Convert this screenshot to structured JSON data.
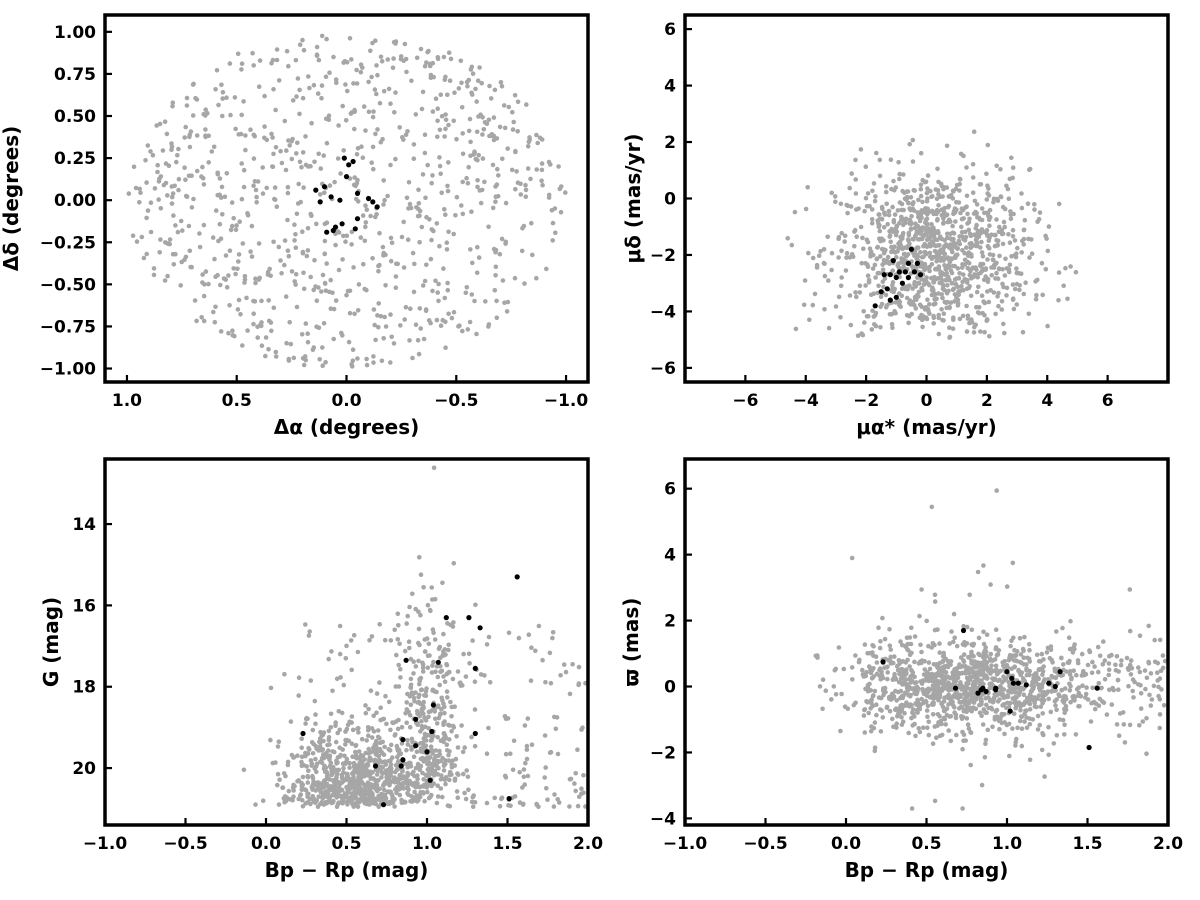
{
  "chart_data": [
    {
      "type": "scatter",
      "id": "spatial",
      "xlabel": "Δα (degrees)",
      "ylabel": "Δδ (degrees)",
      "xlim": [
        1.1,
        -1.1
      ],
      "ylim": [
        -1.08,
        1.1
      ],
      "x_reversed": true,
      "xticks": [
        1.0,
        0.5,
        0.0,
        -0.5,
        -1.0
      ],
      "xtick_labels": [
        "1.0",
        "0.5",
        "0.0",
        "−0.5",
        "−1.0"
      ],
      "yticks": [
        -1.0,
        -0.75,
        -0.5,
        -0.25,
        0.0,
        0.25,
        0.5,
        0.75,
        1.0
      ],
      "ytick_labels": [
        "−1.00",
        "−0.75",
        "−0.50",
        "−0.25",
        "0.00",
        "0.25",
        "0.50",
        "0.75",
        "1.00"
      ],
      "grid": false,
      "legend": "none",
      "field_color": "#a6a6a6",
      "member_color": "#000000",
      "field_distribution": {
        "shape": "disk",
        "center": [
          0.0,
          0.0
        ],
        "radius": 1.0,
        "n": 900
      },
      "members": {
        "x": [
          0.14,
          0.12,
          0.1,
          0.07,
          0.03,
          0.01,
          -0.01,
          -0.03,
          -0.05,
          -0.04,
          0.02,
          0.06,
          0.09,
          -0.1,
          -0.12,
          -0.14,
          -0.05,
          0.0,
          0.05
        ],
        "y": [
          0.06,
          -0.01,
          0.08,
          0.02,
          0.0,
          0.25,
          0.21,
          0.23,
          0.04,
          -0.17,
          -0.14,
          -0.18,
          -0.19,
          0.01,
          -0.01,
          -0.04,
          -0.11,
          0.14,
          -0.16
        ]
      }
    },
    {
      "type": "scatter",
      "id": "proper-motion",
      "xlabel": "μα* (mas/yr)",
      "ylabel": "μδ (mas/yr)",
      "xlim": [
        -8,
        8
      ],
      "ylim": [
        -6.5,
        6.5
      ],
      "xticks": [
        -6,
        -4,
        -2,
        0,
        2,
        4,
        6
      ],
      "xtick_labels": [
        "−6",
        "−4",
        "−2",
        "0",
        "2",
        "4",
        "6"
      ],
      "yticks": [
        -6,
        -4,
        -2,
        0,
        2,
        4,
        6
      ],
      "ytick_labels": [
        "−6",
        "−4",
        "−2",
        "0",
        "2",
        "4",
        "6"
      ],
      "grid": false,
      "legend": "none",
      "field_color": "#a6a6a6",
      "member_color": "#000000",
      "field_distribution": {
        "shape": "gaussian-clump",
        "center": [
          0.2,
          -2.0
        ],
        "sigma": [
          1.6,
          1.5
        ],
        "n": 1100
      },
      "members": {
        "x": [
          -0.5,
          -0.6,
          -0.9,
          -1.1,
          -1.2,
          -1.0,
          -0.3,
          -0.2,
          -0.6,
          -0.8,
          -1.3,
          -1.5,
          -1.7,
          -1.2,
          -1.0,
          -0.7,
          -0.4,
          -1.4
        ],
        "y": [
          -1.8,
          -2.3,
          -2.6,
          -2.2,
          -2.7,
          -3.5,
          -2.3,
          -2.7,
          -2.8,
          -3.0,
          -3.2,
          -3.3,
          -3.8,
          -3.6,
          -2.8,
          -2.6,
          -2.6,
          -2.7
        ]
      }
    },
    {
      "type": "scatter",
      "id": "color-magnitude",
      "xlabel": "Bp − Rp (mag)",
      "ylabel": "G (mag)",
      "xlim": [
        -1.0,
        2.0
      ],
      "ylim": [
        21.4,
        12.4
      ],
      "y_reversed": true,
      "xticks": [
        -1.0,
        -0.5,
        0.0,
        0.5,
        1.0,
        1.5,
        2.0
      ],
      "xtick_labels": [
        "−1.0",
        "−0.5",
        "0.0",
        "0.5",
        "1.0",
        "1.5",
        "2.0"
      ],
      "yticks": [
        14,
        16,
        18,
        20
      ],
      "ytick_labels": [
        "14",
        "16",
        "18",
        "20"
      ],
      "grid": false,
      "legend": "none",
      "field_color": "#a6a6a6",
      "member_color": "#000000",
      "field_distribution": {
        "shape": "cmd-fan",
        "n": 1300
      },
      "members": {
        "x": [
          0.23,
          0.68,
          0.73,
          0.84,
          0.85,
          0.85,
          0.87,
          0.93,
          0.93,
          1.0,
          1.02,
          1.03,
          1.04,
          1.07,
          1.12,
          1.26,
          1.3,
          1.3,
          1.33,
          1.51,
          1.56
        ],
        "y": [
          19.15,
          19.95,
          20.9,
          19.95,
          19.8,
          19.3,
          17.35,
          19.45,
          18.8,
          19.6,
          20.3,
          19.1,
          18.45,
          17.4,
          16.3,
          16.3,
          19.15,
          17.55,
          16.55,
          20.75,
          15.3
        ]
      }
    },
    {
      "type": "scatter",
      "id": "parallax",
      "xlabel": "Bp − Rp (mag)",
      "ylabel": "ϖ (mas)",
      "xlim": [
        -1.0,
        2.0
      ],
      "ylim": [
        -4.2,
        6.9
      ],
      "xticks": [
        -1.0,
        -0.5,
        0.0,
        0.5,
        1.0,
        1.5,
        2.0
      ],
      "xtick_labels": [
        "−1.0",
        "−0.5",
        "0.0",
        "0.5",
        "1.0",
        "1.5",
        "2.0"
      ],
      "yticks": [
        -4,
        -2,
        0,
        2,
        4,
        6
      ],
      "ytick_labels": [
        "−4",
        "−2",
        "0",
        "2",
        "4",
        "6"
      ],
      "grid": false,
      "legend": "none",
      "field_color": "#a6a6a6",
      "member_color": "#000000",
      "field_distribution": {
        "shape": "band",
        "n": 1300
      },
      "members": {
        "x": [
          0.23,
          0.68,
          0.73,
          0.84,
          0.85,
          0.87,
          0.93,
          0.93,
          1.0,
          1.02,
          1.03,
          1.04,
          1.07,
          1.12,
          1.26,
          1.3,
          1.33,
          1.51,
          1.56,
          0.82
        ],
        "y": [
          0.75,
          -0.05,
          1.7,
          -0.1,
          -0.05,
          -0.15,
          -0.05,
          -0.1,
          0.45,
          -0.75,
          0.25,
          0.1,
          0.1,
          0.05,
          0.1,
          0.0,
          0.45,
          -1.85,
          -0.05,
          -0.2
        ]
      }
    }
  ]
}
